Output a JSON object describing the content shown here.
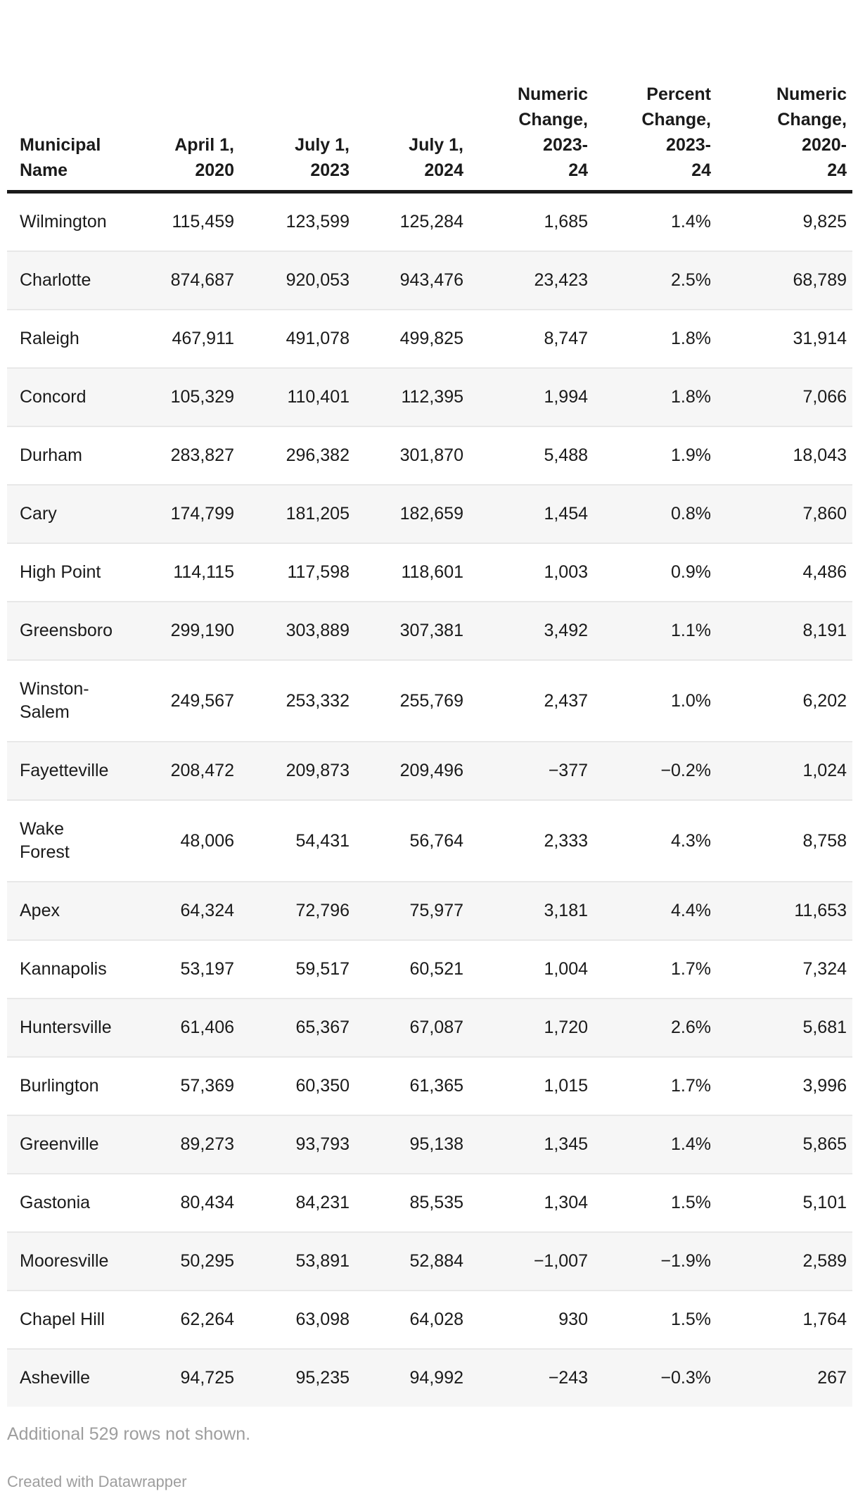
{
  "chart_data": {
    "type": "table",
    "columns": [
      {
        "key": "municipal-name",
        "label": "Municipal\nName"
      },
      {
        "key": "april-1-2020",
        "label": "April 1,\n2020"
      },
      {
        "key": "july-1-2023",
        "label": "July 1,\n2023"
      },
      {
        "key": "july-1-2024",
        "label": "July 1,\n2024"
      },
      {
        "key": "numeric-change-2023-24",
        "label": "Numeric\nChange,\n2023-\n24"
      },
      {
        "key": "percent-change-2023-24",
        "label": "Percent\nChange,\n2023-\n24"
      },
      {
        "key": "numeric-change-2020-24",
        "label": "Numeric\nChange,\n2020-\n24"
      }
    ],
    "rows": [
      [
        "Wilmington",
        "115,459",
        "123,599",
        "125,284",
        "1,685",
        "1.4%",
        "9,825"
      ],
      [
        "Charlotte",
        "874,687",
        "920,053",
        "943,476",
        "23,423",
        "2.5%",
        "68,789"
      ],
      [
        "Raleigh",
        "467,911",
        "491,078",
        "499,825",
        "8,747",
        "1.8%",
        "31,914"
      ],
      [
        "Concord",
        "105,329",
        "110,401",
        "112,395",
        "1,994",
        "1.8%",
        "7,066"
      ],
      [
        "Durham",
        "283,827",
        "296,382",
        "301,870",
        "5,488",
        "1.9%",
        "18,043"
      ],
      [
        "Cary",
        "174,799",
        "181,205",
        "182,659",
        "1,454",
        "0.8%",
        "7,860"
      ],
      [
        "High Point",
        "114,115",
        "117,598",
        "118,601",
        "1,003",
        "0.9%",
        "4,486"
      ],
      [
        "Greensboro",
        "299,190",
        "303,889",
        "307,381",
        "3,492",
        "1.1%",
        "8,191"
      ],
      [
        "Winston-\nSalem",
        "249,567",
        "253,332",
        "255,769",
        "2,437",
        "1.0%",
        "6,202"
      ],
      [
        "Fayetteville",
        "208,472",
        "209,873",
        "209,496",
        "−377",
        "−0.2%",
        "1,024"
      ],
      [
        "Wake\nForest",
        "48,006",
        "54,431",
        "56,764",
        "2,333",
        "4.3%",
        "8,758"
      ],
      [
        "Apex",
        "64,324",
        "72,796",
        "75,977",
        "3,181",
        "4.4%",
        "11,653"
      ],
      [
        "Kannapolis",
        "53,197",
        "59,517",
        "60,521",
        "1,004",
        "1.7%",
        "7,324"
      ],
      [
        "Huntersville",
        "61,406",
        "65,367",
        "67,087",
        "1,720",
        "2.6%",
        "5,681"
      ],
      [
        "Burlington",
        "57,369",
        "60,350",
        "61,365",
        "1,015",
        "1.7%",
        "3,996"
      ],
      [
        "Greenville",
        "89,273",
        "93,793",
        "95,138",
        "1,345",
        "1.4%",
        "5,865"
      ],
      [
        "Gastonia",
        "80,434",
        "84,231",
        "85,535",
        "1,304",
        "1.5%",
        "5,101"
      ],
      [
        "Mooresville",
        "50,295",
        "53,891",
        "52,884",
        "−1,007",
        "−1.9%",
        "2,589"
      ],
      [
        "Chapel Hill",
        "62,264",
        "63,098",
        "64,028",
        "930",
        "1.5%",
        "1,764"
      ],
      [
        "Asheville",
        "94,725",
        "95,235",
        "94,992",
        "−243",
        "−0.3%",
        "267"
      ]
    ],
    "layout_hints": {
      "zebra_striping": true,
      "header_rule": "thick-black-bottom-border",
      "numeric_columns_align": "right"
    }
  },
  "footer": {
    "note": "Additional 529 rows not shown.",
    "credit": "Created with Datawrapper"
  },
  "colors": {
    "text": "#1a1a1a",
    "border_strong": "#1a1a1a",
    "separator": "#e8e8e8",
    "row_shade": "#f6f6f6",
    "muted": "#9e9e9e",
    "background": "#ffffff"
  }
}
